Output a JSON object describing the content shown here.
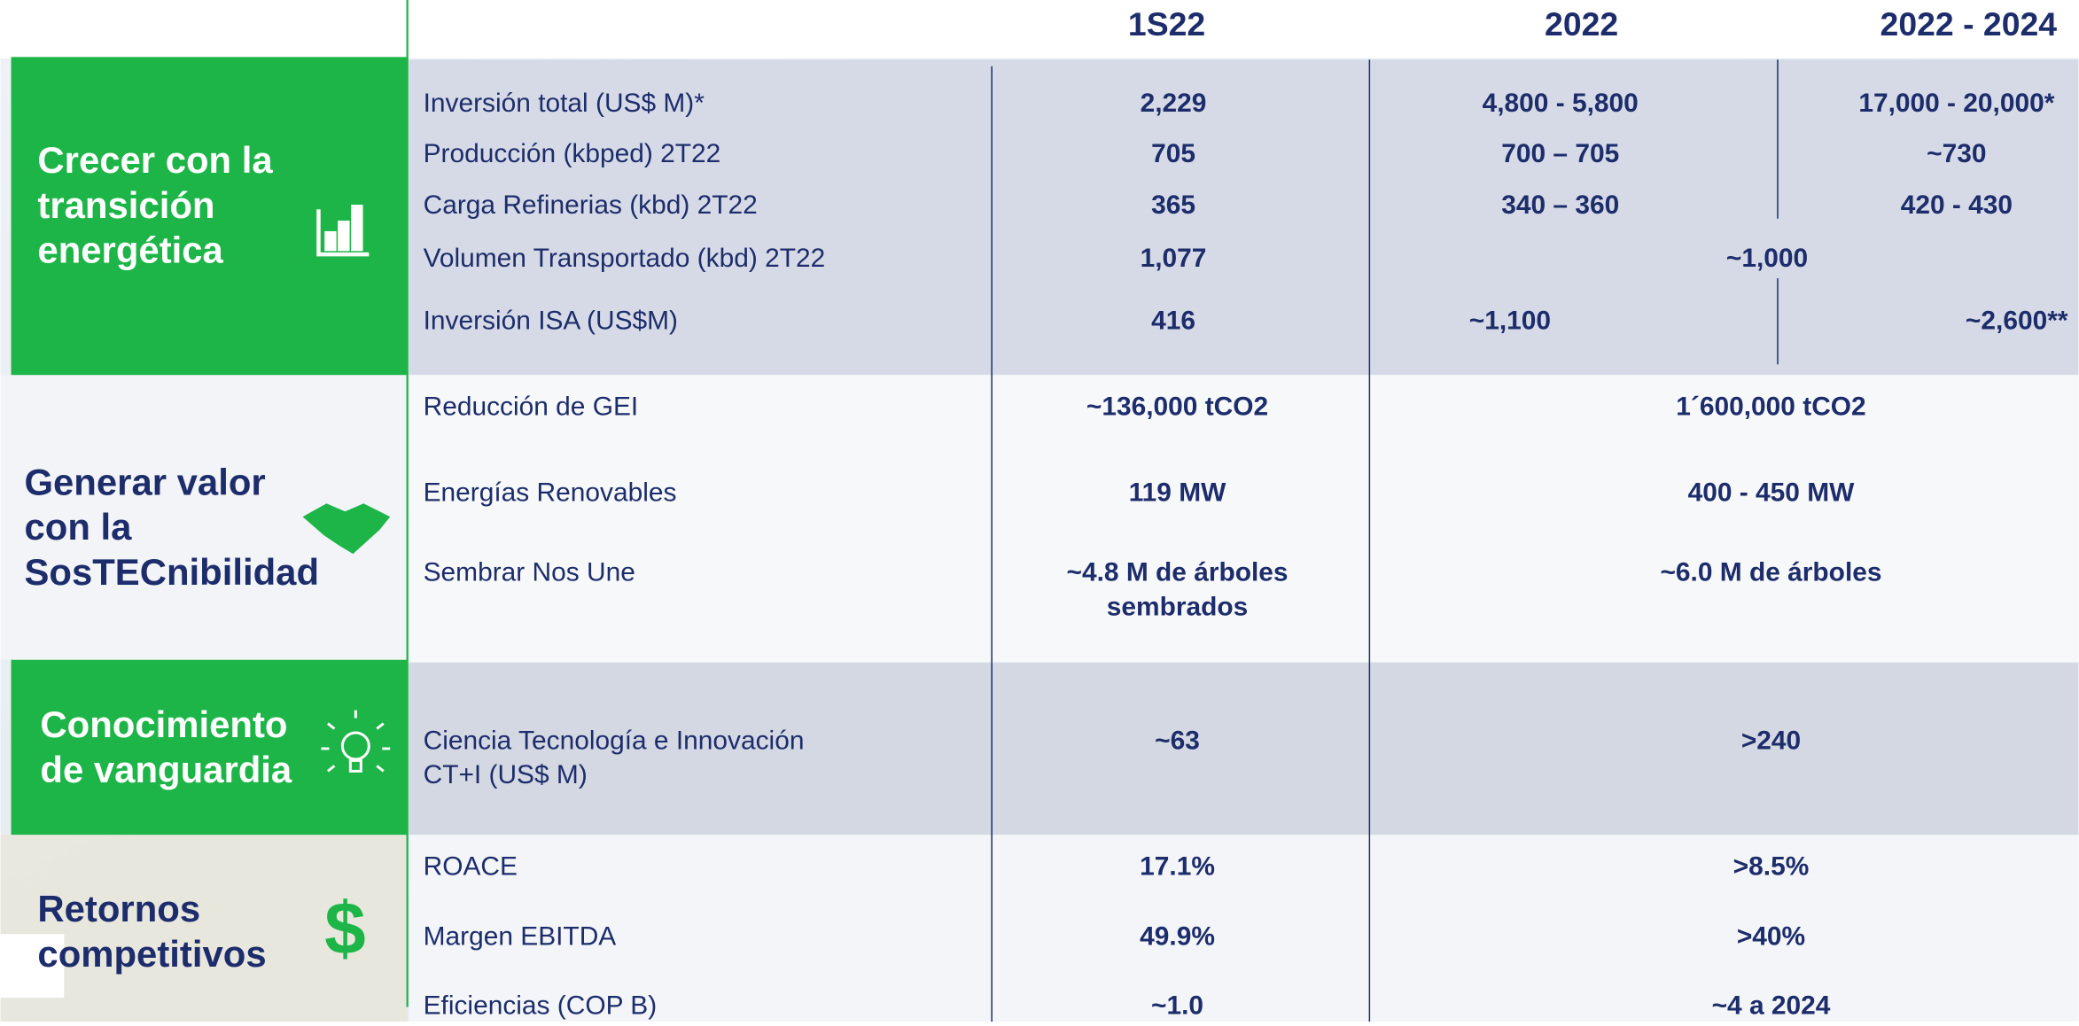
{
  "columns": [
    "1S22",
    "2022",
    "2022 - 2024"
  ],
  "sections": [
    {
      "title": [
        "Crecer con la",
        "transición",
        "energética"
      ],
      "rows": [
        {
          "label": [
            "Inversión total (US$ M)*"
          ],
          "values": [
            [
              "2,229"
            ],
            [
              "4,800 - 5,800"
            ],
            [
              "17,000 - 20,000*"
            ]
          ]
        },
        {
          "label": [
            "Producción (kbped) 2T22"
          ],
          "values": [
            [
              "705"
            ],
            [
              "700 – 705"
            ],
            [
              "~730"
            ]
          ]
        },
        {
          "label": [
            "Carga Refinerias (kbd) 2T22"
          ],
          "values": [
            [
              "365"
            ],
            [
              "340 – 360"
            ],
            [
              "420 - 430"
            ]
          ]
        },
        {
          "label": [
            "Volumen Transportado (kbd) 2T22"
          ],
          "values": [
            [
              "1,077"
            ],
            [
              "~1,000"
            ]
          ]
        },
        {
          "label": [
            "Inversión ISA (US$M)"
          ],
          "values": [
            [
              "416"
            ],
            [
              "~1,100"
            ],
            [
              "~2,600**"
            ]
          ]
        }
      ]
    },
    {
      "title": [
        "Generar valor",
        "con la",
        "SosTECnibilidad"
      ],
      "rows": [
        {
          "label": [
            "Reducción de GEI"
          ],
          "values": [
            [
              "~136,000 tCO2"
            ],
            [
              "1´600,000 tCO2"
            ]
          ]
        },
        {
          "label": [
            "Energías Renovables"
          ],
          "values": [
            [
              "119 MW"
            ],
            [
              "400 - 450 MW"
            ]
          ]
        },
        {
          "label": [
            "Sembrar Nos Une"
          ],
          "values": [
            [
              "~4.8 M de árboles",
              "sembrados"
            ],
            [
              "~6.0 M de árboles"
            ]
          ]
        }
      ]
    },
    {
      "title": [
        "Conocimiento",
        "de vanguardia"
      ],
      "rows": [
        {
          "label": [
            "Ciencia Tecnología e Innovación",
            "CT+I (US$ M)"
          ],
          "values": [
            [
              "~63"
            ],
            [
              ">240"
            ]
          ]
        }
      ]
    },
    {
      "title": [
        "Retornos",
        "competitivos"
      ],
      "rows": [
        {
          "label": [
            "ROACE"
          ],
          "values": [
            [
              "17.1%"
            ],
            [
              ">8.5%"
            ]
          ]
        },
        {
          "label": [
            "Margen EBITDA"
          ],
          "values": [
            [
              "49.9%"
            ],
            [
              ">40%"
            ]
          ]
        },
        {
          "label": [
            "Eficiencias (COP B)"
          ],
          "values": [
            [
              "~1.0"
            ],
            [
              "~4 a 2024"
            ]
          ]
        }
      ]
    }
  ]
}
